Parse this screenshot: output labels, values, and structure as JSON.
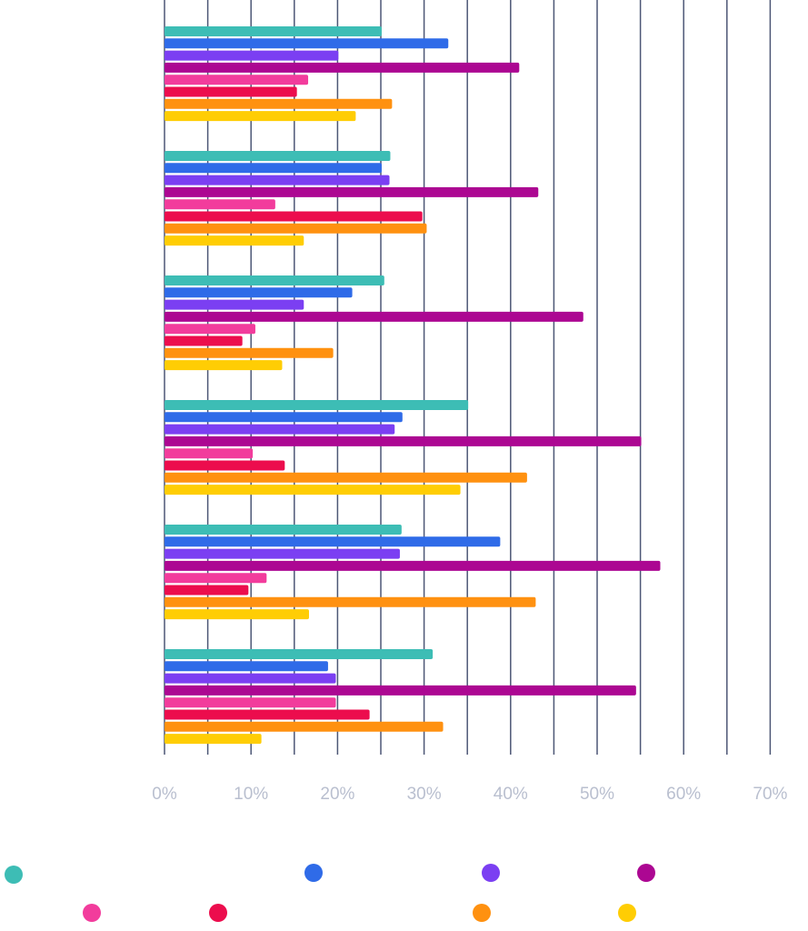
{
  "chart_data": {
    "type": "bar",
    "orientation": "horizontal",
    "xlim": [
      0,
      70
    ],
    "x_tick_labels": [
      "0%",
      "10%",
      "20%",
      "30%",
      "40%",
      "50%",
      "60%",
      "70%"
    ],
    "grid": "vertical",
    "legend": "bottom",
    "categories": [
      "",
      "",
      "",
      "",
      "",
      ""
    ],
    "series": [
      {
        "color": "#3dbdb5",
        "values": [
          25.1,
          26.1,
          25.4,
          35.1,
          27.4,
          31.0
        ]
      },
      {
        "color": "#2f6be8",
        "values": [
          32.8,
          25.1,
          21.7,
          27.5,
          38.8,
          18.9
        ]
      },
      {
        "color": "#7b3ff2",
        "values": [
          20.1,
          26.0,
          16.1,
          26.6,
          27.2,
          19.8
        ]
      },
      {
        "color": "#ac0792",
        "values": [
          41.0,
          43.2,
          48.4,
          55.1,
          57.3,
          54.5
        ]
      },
      {
        "color": "#f23c9c",
        "values": [
          16.6,
          12.8,
          10.5,
          10.2,
          11.8,
          19.8
        ]
      },
      {
        "color": "#ec0d4d",
        "values": [
          15.3,
          29.8,
          9.0,
          13.9,
          9.7,
          23.7
        ]
      },
      {
        "color": "#ff9110",
        "values": [
          26.3,
          30.3,
          19.5,
          41.9,
          42.9,
          32.2
        ]
      },
      {
        "color": "#ffcd04",
        "values": [
          22.1,
          16.1,
          13.6,
          34.2,
          16.7,
          11.2
        ]
      }
    ]
  }
}
